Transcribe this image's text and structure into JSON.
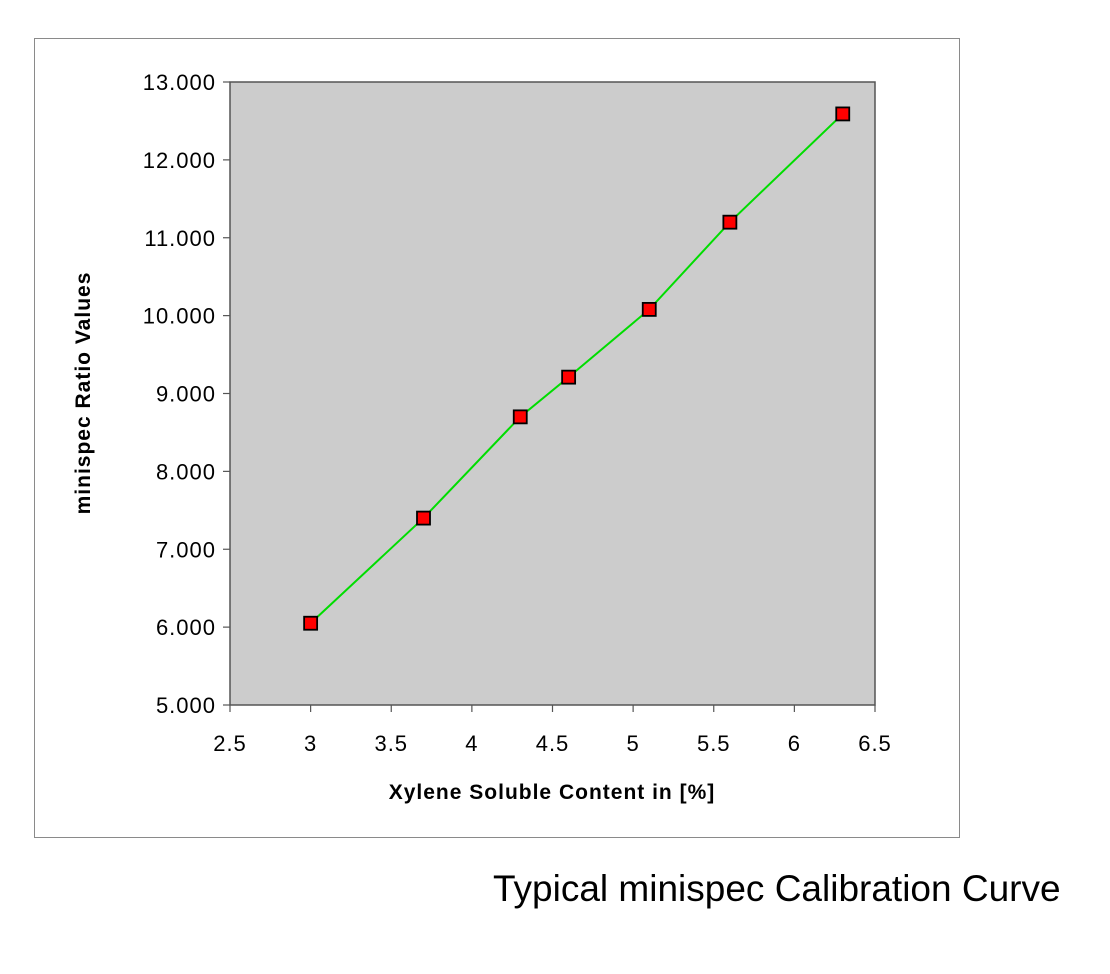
{
  "caption": "Typical minispec Calibration Curve",
  "chart_data": {
    "type": "line",
    "title": "",
    "xlabel": "Xylene Soluble Content in [%]",
    "ylabel": "minispec Ratio Values",
    "xlim": [
      2.5,
      6.5
    ],
    "ylim": [
      5.0,
      13.0
    ],
    "x_ticks": [
      "2.5",
      "3",
      "3.5",
      "4",
      "4.5",
      "5",
      "5.5",
      "6",
      "6.5"
    ],
    "y_ticks": [
      "5.000",
      "6.000",
      "7.000",
      "8.000",
      "9.000",
      "10.000",
      "11.000",
      "12.000",
      "13.000"
    ],
    "grid": false,
    "legend": "none",
    "series": [
      {
        "x": [
          3.0,
          3.7,
          4.3,
          4.6,
          5.1,
          5.6,
          6.3
        ],
        "y": [
          6.05,
          7.4,
          8.7,
          9.21,
          10.08,
          11.2,
          12.59
        ],
        "marker": "square",
        "marker_color": "#ff0000",
        "line_color": "#00dd00"
      }
    ],
    "plot_background": "#cccccc"
  }
}
